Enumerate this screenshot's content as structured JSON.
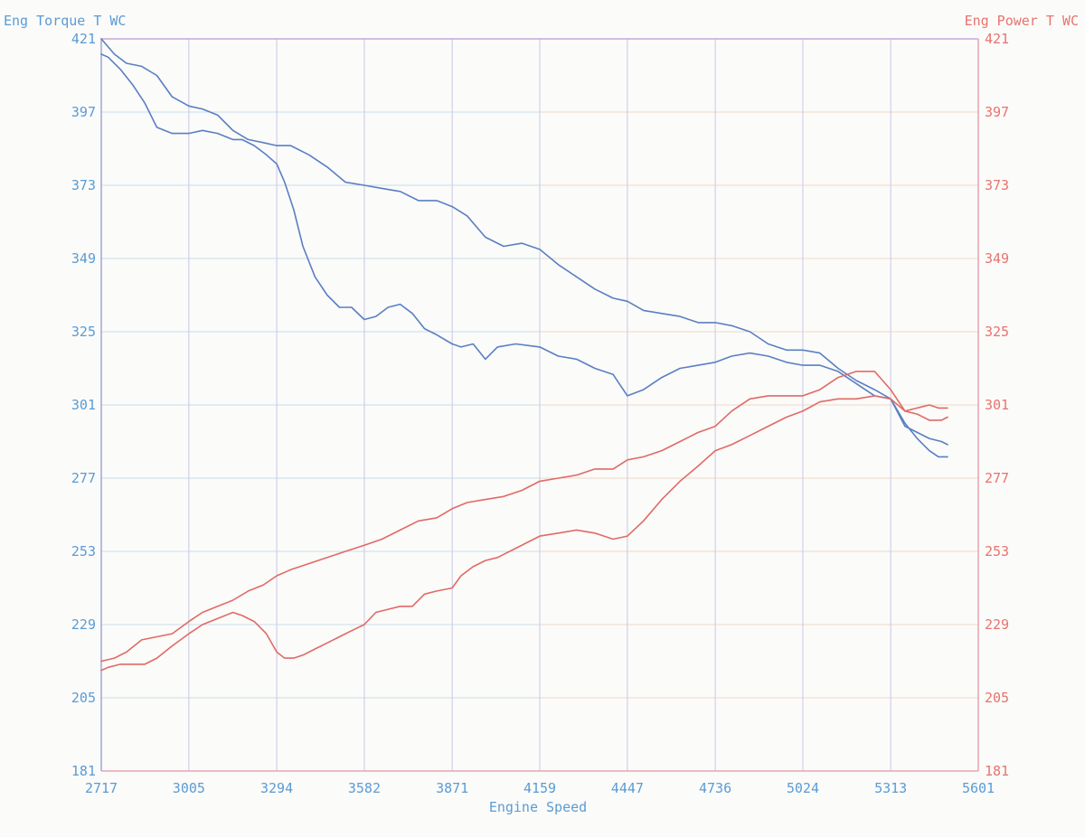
{
  "chart_data": {
    "type": "line",
    "title": "",
    "xlabel": "Engine Speed",
    "ylabel_left": "Eng Torque T WC",
    "ylabel_right": "Eng Power T WC",
    "xlim": [
      2717,
      5601
    ],
    "ylim_left": [
      181,
      421
    ],
    "ylim_right": [
      181,
      421
    ],
    "grid": true,
    "x_ticks": [
      2717,
      3005,
      3294,
      3582,
      3871,
      4159,
      4447,
      4736,
      5024,
      5313,
      5601
    ],
    "y_ticks": [
      181,
      205,
      229,
      253,
      277,
      301,
      325,
      349,
      373,
      397,
      421
    ],
    "colors": {
      "torque": "#5a7fc4",
      "power": "#e06a66",
      "left_axis": "#5b9bd5",
      "right_axis": "#e8736e",
      "grid_v": "#c8c8ea",
      "grid_h_left": "#c9dcec",
      "grid_h_right": "#ecd9c8",
      "frame_top": "#c9a8d8",
      "frame_bottom": "#e6a7b8"
    },
    "series": [
      {
        "axis": "left",
        "x": [
          2717,
          2760,
          2800,
          2850,
          2900,
          2950,
          3005,
          3050,
          3100,
          3150,
          3200,
          3250,
          3294,
          3340,
          3400,
          3460,
          3520,
          3582,
          3640,
          3700,
          3760,
          3820,
          3871,
          3920,
          3980,
          4040,
          4100,
          4159,
          4220,
          4280,
          4340,
          4400,
          4447,
          4500,
          4560,
          4620,
          4680,
          4736,
          4790,
          4850,
          4910,
          4970,
          5024,
          5080,
          5140,
          5200,
          5260,
          5313,
          5360,
          5400,
          5440,
          5480,
          5500
        ],
        "y": [
          421,
          416,
          413,
          412,
          409,
          402,
          399,
          398,
          396,
          391,
          388,
          387,
          386,
          386,
          383,
          379,
          374,
          373,
          372,
          371,
          368,
          368,
          366,
          363,
          356,
          353,
          354,
          352,
          347,
          343,
          339,
          336,
          335,
          332,
          331,
          330,
          328,
          328,
          327,
          325,
          321,
          319,
          319,
          318,
          313,
          309,
          306,
          303,
          294,
          292,
          290,
          289,
          288
        ]
      },
      {
        "axis": "left",
        "x": [
          2717,
          2740,
          2780,
          2820,
          2860,
          2900,
          2950,
          3005,
          3050,
          3100,
          3150,
          3180,
          3220,
          3260,
          3294,
          3320,
          3350,
          3380,
          3420,
          3460,
          3500,
          3540,
          3582,
          3620,
          3660,
          3700,
          3740,
          3780,
          3820,
          3871,
          3900,
          3940,
          3980,
          4020,
          4080,
          4159,
          4220,
          4280,
          4340,
          4400,
          4447,
          4500,
          4560,
          4620,
          4680,
          4736,
          4790,
          4850,
          4910,
          4970,
          5024,
          5080,
          5140,
          5200,
          5260,
          5313,
          5360,
          5400,
          5440,
          5470,
          5500
        ],
        "y": [
          416,
          415,
          411,
          406,
          400,
          392,
          390,
          390,
          391,
          390,
          388,
          388,
          386,
          383,
          380,
          374,
          365,
          353,
          343,
          337,
          333,
          333,
          329,
          330,
          333,
          334,
          331,
          326,
          324,
          321,
          320,
          321,
          316,
          320,
          321,
          320,
          317,
          316,
          313,
          311,
          304,
          306,
          310,
          313,
          314,
          315,
          317,
          318,
          317,
          315,
          314,
          314,
          312,
          308,
          304,
          303,
          295,
          290,
          286,
          284,
          284
        ]
      },
      {
        "axis": "right",
        "x": [
          2717,
          2760,
          2800,
          2850,
          2900,
          2950,
          3005,
          3050,
          3100,
          3150,
          3200,
          3250,
          3294,
          3340,
          3400,
          3460,
          3520,
          3582,
          3640,
          3700,
          3760,
          3820,
          3871,
          3920,
          3980,
          4040,
          4100,
          4159,
          4220,
          4280,
          4340,
          4400,
          4447,
          4500,
          4560,
          4620,
          4680,
          4736,
          4790,
          4850,
          4910,
          4970,
          5024,
          5080,
          5140,
          5200,
          5260,
          5313,
          5360,
          5400,
          5440,
          5480,
          5500
        ],
        "y": [
          217,
          218,
          220,
          224,
          225,
          226,
          230,
          233,
          235,
          237,
          240,
          242,
          245,
          247,
          249,
          251,
          253,
          255,
          257,
          260,
          263,
          264,
          267,
          269,
          270,
          271,
          273,
          276,
          277,
          278,
          280,
          280,
          283,
          284,
          286,
          289,
          292,
          294,
          299,
          303,
          304,
          304,
          304,
          306,
          310,
          312,
          312,
          306,
          299,
          298,
          296,
          296,
          297
        ]
      },
      {
        "axis": "right",
        "x": [
          2717,
          2740,
          2780,
          2820,
          2860,
          2900,
          2950,
          3005,
          3050,
          3100,
          3150,
          3180,
          3220,
          3260,
          3294,
          3320,
          3350,
          3380,
          3420,
          3460,
          3500,
          3540,
          3582,
          3620,
          3660,
          3700,
          3740,
          3780,
          3820,
          3871,
          3900,
          3940,
          3980,
          4020,
          4080,
          4159,
          4220,
          4280,
          4340,
          4400,
          4447,
          4500,
          4560,
          4620,
          4680,
          4736,
          4790,
          4850,
          4910,
          4970,
          5024,
          5080,
          5140,
          5200,
          5260,
          5313,
          5360,
          5400,
          5440,
          5470,
          5500
        ],
        "y": [
          214,
          215,
          216,
          216,
          216,
          218,
          222,
          226,
          229,
          231,
          233,
          232,
          230,
          226,
          220,
          218,
          218,
          219,
          221,
          223,
          225,
          227,
          229,
          233,
          234,
          235,
          235,
          239,
          240,
          241,
          245,
          248,
          250,
          251,
          254,
          258,
          259,
          260,
          259,
          257,
          258,
          263,
          270,
          276,
          281,
          286,
          288,
          291,
          294,
          297,
          299,
          302,
          303,
          303,
          304,
          303,
          299,
          300,
          301,
          300,
          300
        ]
      }
    ]
  }
}
